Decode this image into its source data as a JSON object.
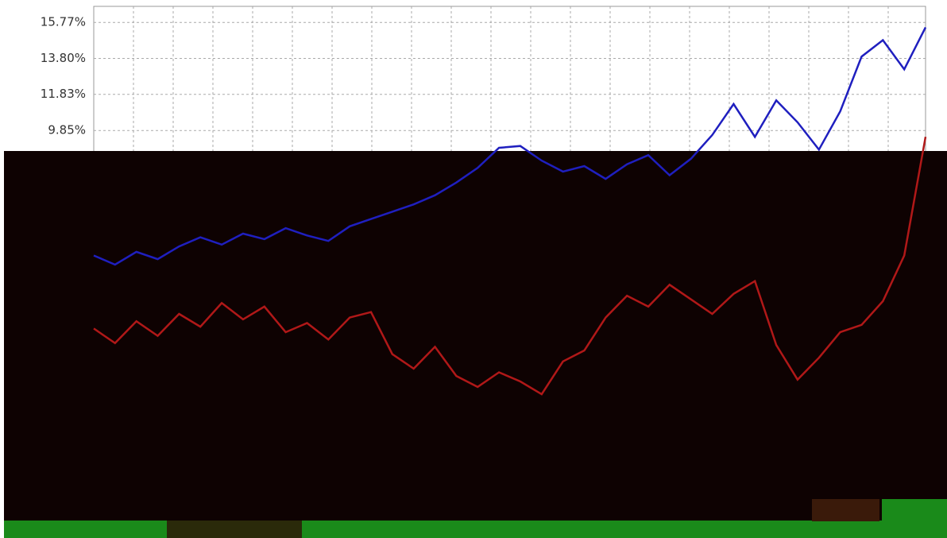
{
  "chart_data": {
    "type": "line",
    "categories": [
      null,
      null,
      null,
      null,
      null,
      null,
      null,
      null,
      null,
      null,
      null,
      null,
      null,
      null,
      null,
      null,
      null,
      null,
      null,
      null,
      null,
      null,
      null,
      null,
      null,
      null,
      null,
      null,
      null,
      null,
      null,
      null,
      null,
      null,
      null,
      null,
      null,
      null,
      null,
      null
    ],
    "series": [
      {
        "color": "#1f1fbf",
        "values": [
          3.0,
          2.5,
          3.2,
          2.8,
          3.5,
          4.0,
          3.6,
          4.2,
          3.9,
          4.5,
          4.1,
          3.8,
          4.6,
          5.0,
          5.4,
          5.8,
          6.3,
          7.0,
          7.8,
          8.9,
          9.0,
          8.2,
          7.6,
          7.9,
          7.2,
          8.0,
          8.5,
          7.4,
          8.3,
          9.6,
          11.3,
          9.5,
          11.5,
          10.3,
          8.8,
          10.9,
          13.9,
          14.8,
          13.2,
          15.5
        ]
      },
      {
        "color": "#b01818",
        "values": [
          -1.0,
          -1.8,
          -0.6,
          -1.4,
          -0.2,
          -0.9,
          0.4,
          -0.5,
          0.2,
          -1.2,
          -0.7,
          -1.6,
          -0.4,
          -0.1,
          -2.4,
          -3.2,
          -2.0,
          -3.6,
          -4.2,
          -3.4,
          -3.9,
          -4.6,
          -2.8,
          -2.2,
          -0.4,
          0.8,
          0.2,
          1.4,
          0.6,
          -0.2,
          0.9,
          1.6,
          -1.9,
          -3.8,
          -2.6,
          -1.2,
          -0.8,
          0.5,
          3.0,
          9.5
        ]
      }
    ],
    "ylim": [
      -11.3,
      16.65
    ],
    "yticks": [
      {
        "value": 9.85,
        "label": "9.85%"
      },
      {
        "value": 11.83,
        "label": "11.83%"
      },
      {
        "value": 13.8,
        "label": "13.80%"
      },
      {
        "value": 15.77,
        "label": "15.77%"
      }
    ],
    "grid": true
  }
}
